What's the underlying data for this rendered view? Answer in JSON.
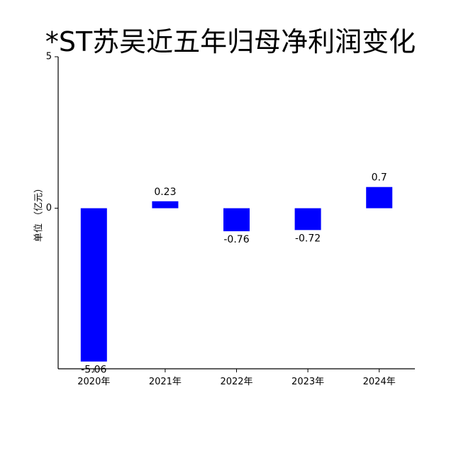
{
  "chart_data": {
    "type": "bar",
    "title": "*ST苏吴近五年归母净利润变化",
    "ylabel": "单位 （亿元）",
    "xlabel": "",
    "categories": [
      "2020年",
      "2021年",
      "2022年",
      "2023年",
      "2024年"
    ],
    "values": [
      -5.06,
      0.23,
      -0.76,
      -0.72,
      0.7
    ],
    "value_labels": [
      "-5.06",
      "0.23",
      "-0.76",
      "-0.72",
      "0.7"
    ],
    "ylim": [
      -5.3,
      5
    ],
    "yticks": [
      5,
      0
    ],
    "ytick_labels": [
      "5",
      "0"
    ],
    "bar_color": "#0000ff",
    "grid": false,
    "legend": "none"
  }
}
